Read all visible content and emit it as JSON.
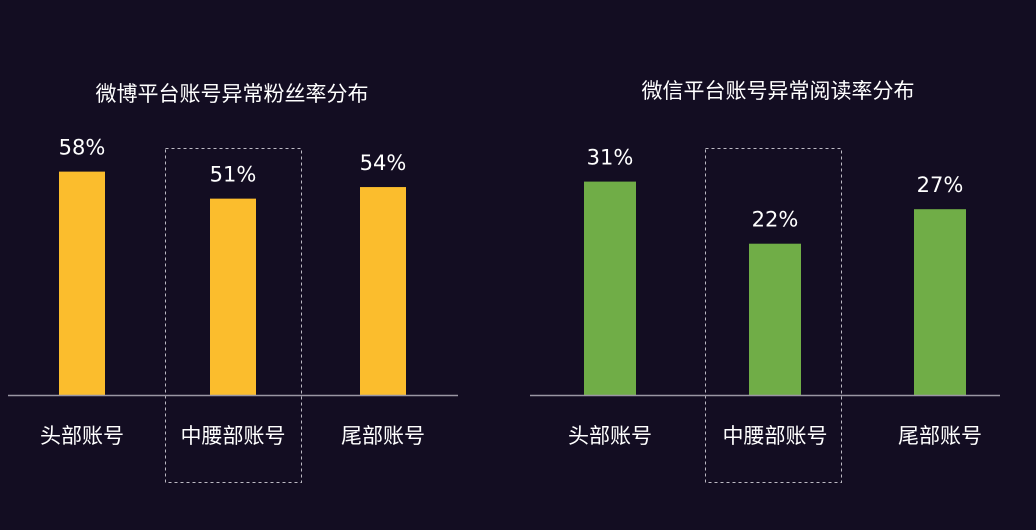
{
  "theme": {
    "background": "#130d22",
    "text": "#ffffff",
    "axis": "#9a96a3",
    "highlight_box": "#bdbac4"
  },
  "chart_data": [
    {
      "type": "bar",
      "title": "微博平台账号异常粉丝率分布",
      "categories": [
        "头部账号",
        "中腰部账号",
        "尾部账号"
      ],
      "values": [
        58,
        51,
        54
      ],
      "value_labels": [
        "58%",
        "51%",
        "54%"
      ],
      "unit": "%",
      "color": "#fbbd2d",
      "highlighted_category": "中腰部账号",
      "xlabel": "",
      "ylabel": "",
      "grid": false,
      "legend": "none"
    },
    {
      "type": "bar",
      "title": "微信平台账号异常阅读率分布",
      "categories": [
        "头部账号",
        "中腰部账号",
        "尾部账号"
      ],
      "values": [
        31,
        22,
        27
      ],
      "value_labels": [
        "31%",
        "22%",
        "27%"
      ],
      "unit": "%",
      "color": "#70ad47",
      "highlighted_category": "中腰部账号",
      "xlabel": "",
      "ylabel": "",
      "grid": false,
      "legend": "none"
    }
  ]
}
